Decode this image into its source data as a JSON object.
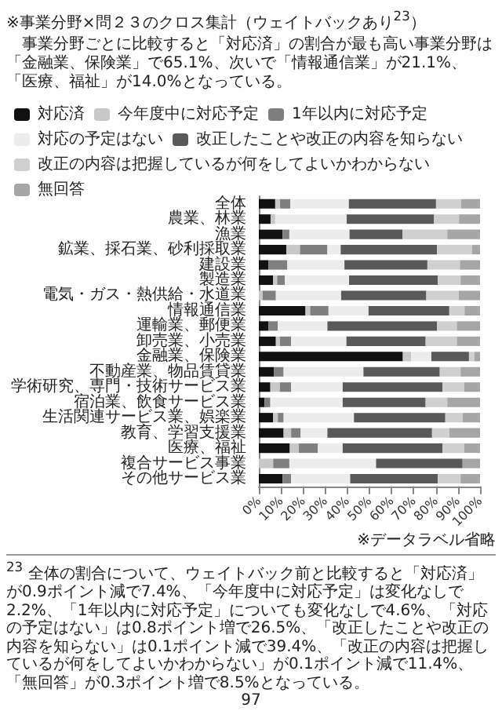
{
  "chart_data": {
    "type": "bar",
    "orientation": "horizontal",
    "stacked": true,
    "title": "※事業分野×問２３のクロス集計（ウェイトバックあり$^{23}$）",
    "subtitle": "事業分野ごとに比較すると「対応済」の割合が最も高い事業分野は「金融業、保険業」で65.1%、次いで「情報通信業」が21.1%、「医療、福祉」が14.0%となっている。",
    "categories": [
      "全体",
      "農業、林業",
      "漁業",
      "鉱業、採石業、砂利採取業",
      "建設業",
      "製造業",
      "電気・ガス・熱供給・水道業",
      "情報通信業",
      "運輸業、郵便業",
      "卸売業、小売業",
      "金融業、保険業",
      "不動産業、物品賃貸業",
      "学術研究、専門・技術サービス業",
      "宿泊業、飲食サービス業",
      "生活関連サービス業、娯楽業",
      "教育、学習支援業",
      "医療、福祉",
      "複合サービス事業",
      "その他サービス業"
    ],
    "series": [
      {
        "name": "対応済",
        "color": "#111111",
        "values": [
          7.4,
          5.3,
          10.7,
          12.4,
          4.3,
          6.5,
          0,
          21.1,
          4.3,
          7.7,
          65.1,
          6.9,
          5.2,
          2.6,
          6.5,
          11.2,
          14.0,
          0,
          10.7
        ]
      },
      {
        "name": "今年度中に対応予定",
        "color": "#c8c8c8",
        "values": [
          2.2,
          2.1,
          0,
          6.2,
          null,
          1.8,
          1.7,
          2.1,
          0,
          1.8,
          3.7,
          0,
          4.3,
          0,
          2.1,
          3.4,
          4.1,
          6.5,
          0
        ]
      },
      {
        "name": "1年以内に対応予定",
        "color": "#7f7f7f",
        "values": [
          4.6,
          0,
          3.1,
          12.4,
          8.6,
          3.4,
          6.0,
          8.3,
          4.3,
          5.1,
          0,
          4.3,
          5.1,
          2.6,
          2.6,
          4.3,
          8.6,
          7.3,
          3.9
        ]
      },
      {
        "name": "対応の予定はない",
        "color": "#ececec",
        "values": [
          26.5,
          32.3,
          27.2,
          6.0,
          25.8,
          29.1,
          29.5,
          18.1,
          22.4,
          25.0,
          9.2,
          36.1,
          23.3,
          32.7,
          31.8,
          12.1,
          11.2,
          39.2,
          26.7
        ]
      },
      {
        "name": "改正したことや改正の内容を知らない",
        "color": "#595959",
        "values": [
          39.4,
          39.5,
          23.9,
          43.5,
          37.5,
          40.1,
          38.5,
          36.5,
          49.5,
          35.8,
          17.0,
          34.5,
          45.1,
          37.5,
          41.3,
          47.3,
          45.1,
          39.1,
          39.6
        ]
      },
      {
        "name": "改正の内容は把握しているが何をしてよいかわからない",
        "color": "#d0d0d0",
        "values": [
          11.4,
          11.3,
          20.3,
          15.9,
          14.7,
          10.3,
          14.7,
          6.9,
          9.0,
          14.1,
          2.5,
          9.4,
          9.9,
          9.8,
          7.8,
          7.8,
          9.9,
          0,
          10.3
        ]
      },
      {
        "name": "無回答",
        "color": "#a6a6a6",
        "values": [
          8.5,
          9.5,
          14.8,
          3.6,
          9.1,
          8.8,
          9.6,
          7.0,
          10.5,
          10.5,
          2.5,
          8.8,
          7.1,
          14.8,
          7.9,
          13.9,
          7.1,
          7.9,
          8.8
        ]
      }
    ],
    "xlim": [
      0,
      100
    ],
    "xticks": [
      {
        "value": 0,
        "label": "0%"
      },
      {
        "value": 10,
        "label": "10%"
      },
      {
        "value": 20,
        "label": "20%"
      },
      {
        "value": 30,
        "label": "30%"
      },
      {
        "value": 40,
        "label": "40%"
      },
      {
        "value": 50,
        "label": "50%"
      },
      {
        "value": 60,
        "label": "60%"
      },
      {
        "value": 70,
        "label": "70%"
      },
      {
        "value": 80,
        "label": "80%"
      },
      {
        "value": 90,
        "label": "90%"
      },
      {
        "value": 100,
        "label": "100%"
      }
    ],
    "legend": "top",
    "grid": false,
    "annotations": [
      "※データラベル省略",
      "$^{23}$ 全体の割合について、ウェイトバック前と比較すると「対応済」が0.9ポイント減で7.4%、「今年度中に対応予定」は変化なしで2.2%、「1年以内に対応予定」についても変化なしで4.6%、「対応の予定はない」は0.8ポイント増で26.5%、「改正したことや改正の内容を知らない」は0.1ポイント減で39.4%、「改正の内容は把握しているが何をしてよいかわからない」が0.1ポイント減で11.4%、「無回答」が0.3ポイント増で8.5%となっている。",
      "97"
    ]
  }
}
